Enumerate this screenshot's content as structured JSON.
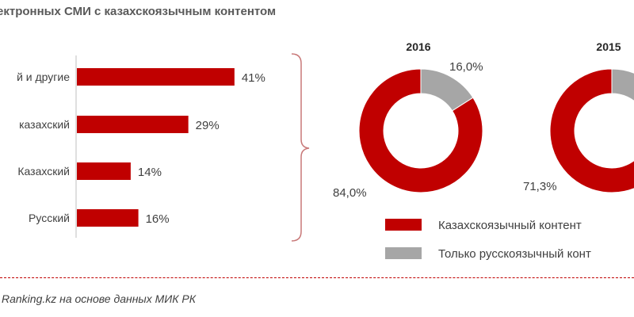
{
  "title": "ектронных СМИ с казахскоязычным  контентом",
  "source": "Ranking.kz на основе данных МИК РК",
  "colors": {
    "primary": "#c00000",
    "secondary": "#a6a6a6",
    "text": "#404040"
  },
  "chart_data": [
    {
      "type": "bar",
      "orientation": "horizontal",
      "categories": [
        "й и другие",
        "казахский",
        "Казахский",
        "Русский"
      ],
      "values": [
        41,
        29,
        14,
        16
      ],
      "value_labels": [
        "41%",
        "29%",
        "14%",
        "16%"
      ],
      "unit": "%"
    },
    {
      "type": "pie",
      "style": "donut",
      "title": "2016",
      "slices": [
        {
          "name": "Казахскоязычный контент",
          "value": 84.0,
          "label": "84,0%",
          "color": "#c00000"
        },
        {
          "name": "Только русскоязычный контент",
          "value": 16.0,
          "label": "16,0%",
          "color": "#a6a6a6"
        }
      ]
    },
    {
      "type": "pie",
      "style": "donut",
      "title": "2015",
      "slices": [
        {
          "name": "Казахскоязычный контент",
          "value": 71.3,
          "label": "71,3%",
          "color": "#c00000"
        },
        {
          "name": "Только русскоязычный контент",
          "value": 28.7,
          "label": "",
          "color": "#a6a6a6"
        }
      ]
    }
  ],
  "legend": [
    {
      "label": "Казахскоязычный контент",
      "color": "#c00000"
    },
    {
      "label": "Только русскоязычный конт",
      "color": "#a6a6a6"
    }
  ]
}
